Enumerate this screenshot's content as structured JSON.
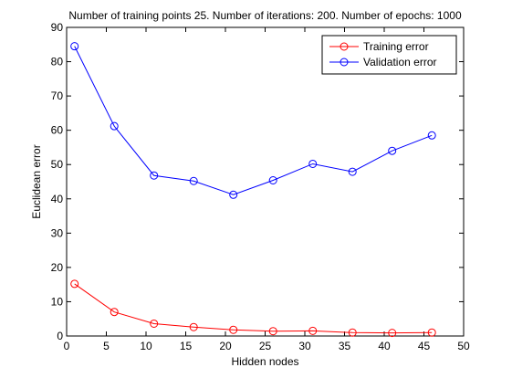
{
  "chart_data": {
    "type": "line",
    "title": "Number of training points 25. Number of iterations: 200. Number of epochs: 1000",
    "xlabel": "Hidden nodes",
    "ylabel": "Euclidean error",
    "xlim": [
      0,
      50
    ],
    "ylim": [
      0,
      90
    ],
    "xticks": [
      "0",
      "5",
      "10",
      "15",
      "20",
      "25",
      "30",
      "35",
      "40",
      "45",
      "50"
    ],
    "yticks": [
      "0",
      "10",
      "20",
      "30",
      "40",
      "50",
      "60",
      "70",
      "80",
      "90"
    ],
    "grid": false,
    "legend_position": "top-right",
    "x": [
      1,
      6,
      11,
      16,
      21,
      26,
      31,
      36,
      41,
      46
    ],
    "series": [
      {
        "name": "Training error",
        "color": "#ff0000",
        "marker": "circle",
        "values": [
          15.2,
          7.0,
          3.6,
          2.6,
          1.8,
          1.4,
          1.5,
          1.0,
          0.9,
          1.0
        ]
      },
      {
        "name": "Validation error",
        "color": "#0000ff",
        "marker": "circle",
        "values": [
          84.5,
          61.2,
          46.8,
          45.2,
          41.2,
          45.4,
          50.2,
          47.9,
          54.0,
          58.5
        ]
      }
    ]
  }
}
